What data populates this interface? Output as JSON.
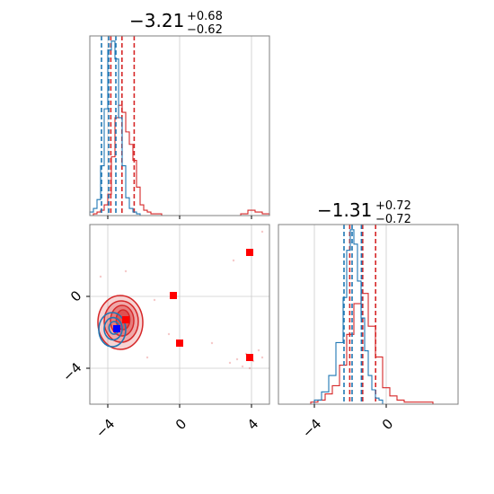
{
  "chart_data": {
    "type": "corner",
    "colors": {
      "series_red": "#d62728",
      "series_blue": "#1f77b4",
      "grid": "#cccccc",
      "frame": "#7f7f7f"
    },
    "params": [
      {
        "range": [
          -5.0,
          5.0
        ],
        "ticks": [
          -4,
          0,
          4
        ],
        "tick_labels": [
          "−4",
          "0",
          "4"
        ]
      },
      {
        "range": [
          -6.0,
          4.0
        ],
        "ticks": [
          -4,
          0
        ],
        "tick_labels": [
          "−4",
          "0"
        ]
      }
    ],
    "titles": [
      {
        "median": "−3.21",
        "upper": "+0.68",
        "lower": "−0.62"
      },
      {
        "median": "−1.31",
        "upper": "+0.72",
        "lower": "−0.72"
      }
    ],
    "marginals": [
      {
        "param": 0,
        "series": [
          {
            "color": "red",
            "quantiles": [
              -3.83,
              -3.21,
              -2.53
            ],
            "bins_x": [
              -5.0,
              -4.8,
              -4.6,
              -4.4,
              -4.2,
              -4.0,
              -3.8,
              -3.6,
              -3.4,
              -3.2,
              -3.0,
              -2.8,
              -2.6,
              -2.4,
              -2.2,
              -2.0,
              -1.8,
              -1.6,
              -1.4,
              -1.2,
              -1.0,
              0,
              1,
              2,
              3,
              3.4,
              3.8,
              4.2,
              4.6,
              5.0
            ],
            "values": [
              0.0,
              0.01,
              0.02,
              0.03,
              0.06,
              0.12,
              0.33,
              0.55,
              0.62,
              0.58,
              0.47,
              0.4,
              0.31,
              0.16,
              0.06,
              0.03,
              0.02,
              0.01,
              0.01,
              0.01,
              0.0,
              0.0,
              0.0,
              0.0,
              0.0,
              0.01,
              0.03,
              0.02,
              0.01
            ]
          },
          {
            "color": "blue",
            "quantiles": [
              -4.35,
              -3.95,
              -3.55
            ],
            "bins_x": [
              -5.0,
              -4.8,
              -4.6,
              -4.4,
              -4.2,
              -4.0,
              -3.8,
              -3.6,
              -3.4,
              -3.2,
              -3.0,
              -2.8,
              -2.6,
              -2.4,
              -2.2,
              5.0
            ],
            "values": [
              0.02,
              0.04,
              0.09,
              0.28,
              0.6,
              0.93,
              0.98,
              0.88,
              0.55,
              0.28,
              0.1,
              0.04,
              0.02,
              0.01,
              0.0
            ]
          }
        ]
      },
      {
        "param": 1,
        "series": [
          {
            "color": "red",
            "quantiles": [
              -2.03,
              -1.31,
              -0.59
            ],
            "bins_x": [
              -6.0,
              -4.2,
              -3.8,
              -3.4,
              -3.0,
              -2.6,
              -2.2,
              -1.8,
              -1.4,
              -1.0,
              -0.6,
              -0.2,
              0.2,
              0.6,
              1.0,
              2.6,
              4.0
            ],
            "values": [
              0.0,
              0.01,
              0.02,
              0.05,
              0.09,
              0.19,
              0.34,
              0.49,
              0.54,
              0.38,
              0.23,
              0.08,
              0.04,
              0.02,
              0.01,
              0.0
            ]
          },
          {
            "color": "blue",
            "quantiles": [
              -2.35,
              -1.9,
              -1.38
            ],
            "bins_x": [
              -6.0,
              -4.0,
              -3.6,
              -3.2,
              -2.8,
              -2.4,
              -2.2,
              -2.0,
              -1.8,
              -1.6,
              -1.4,
              -1.2,
              -1.0,
              -0.8,
              -0.6,
              -0.4,
              -0.2,
              0.2,
              4.0
            ],
            "values": [
              0.0,
              0.02,
              0.06,
              0.14,
              0.3,
              0.52,
              0.75,
              0.85,
              0.78,
              0.6,
              0.42,
              0.26,
              0.14,
              0.07,
              0.03,
              0.02,
              0.0,
              0.0
            ]
          }
        ]
      }
    ],
    "joint": {
      "x_param": 0,
      "y_param": 1,
      "red_contours": [
        {
          "cx": -3.3,
          "cy": -1.45,
          "rx": 1.25,
          "ry": 1.5,
          "opacity": 0.2
        },
        {
          "cx": -3.25,
          "cy": -1.4,
          "rx": 0.95,
          "ry": 1.15,
          "opacity": 0.25
        },
        {
          "cx": -3.2,
          "cy": -1.35,
          "rx": 0.65,
          "ry": 0.85,
          "opacity": 0.35
        },
        {
          "cx": -3.15,
          "cy": -1.3,
          "rx": 0.38,
          "ry": 0.55,
          "opacity": 0.5
        }
      ],
      "blue_contours": [
        {
          "cx": -3.75,
          "cy": -1.85,
          "rx": 0.75,
          "ry": 0.95
        },
        {
          "cx": -3.7,
          "cy": -1.8,
          "rx": 0.5,
          "ry": 0.62
        },
        {
          "cx": -3.65,
          "cy": -1.75,
          "rx": 0.28,
          "ry": 0.35
        }
      ],
      "red_markers": [
        {
          "x": 3.9,
          "y": 2.45
        },
        {
          "x": -0.35,
          "y": 0.05
        },
        {
          "x": 0.0,
          "y": -2.6
        },
        {
          "x": 3.9,
          "y": -3.4
        },
        {
          "x": -3.0,
          "y": -1.3
        }
      ],
      "blue_markers": [
        {
          "x": -3.5,
          "y": -1.8
        }
      ],
      "scatter": [
        {
          "x": 3.7,
          "y": -3.2
        },
        {
          "x": 4.1,
          "y": -3.6
        },
        {
          "x": 3.5,
          "y": -3.9
        },
        {
          "x": 4.4,
          "y": -3.0
        },
        {
          "x": 3.2,
          "y": -3.5
        },
        {
          "x": 3.9,
          "y": -4.0
        },
        {
          "x": 2.8,
          "y": -3.7
        },
        {
          "x": 4.6,
          "y": -3.4
        },
        {
          "x": 1.8,
          "y": -2.6
        },
        {
          "x": -0.6,
          "y": -2.1
        },
        {
          "x": -1.4,
          "y": -0.2
        },
        {
          "x": -4.4,
          "y": 1.1
        },
        {
          "x": -3.0,
          "y": 1.4
        },
        {
          "x": 4.6,
          "y": 3.6
        },
        {
          "x": 3.0,
          "y": 2.0
        },
        {
          "x": -1.8,
          "y": -3.4
        }
      ]
    }
  }
}
